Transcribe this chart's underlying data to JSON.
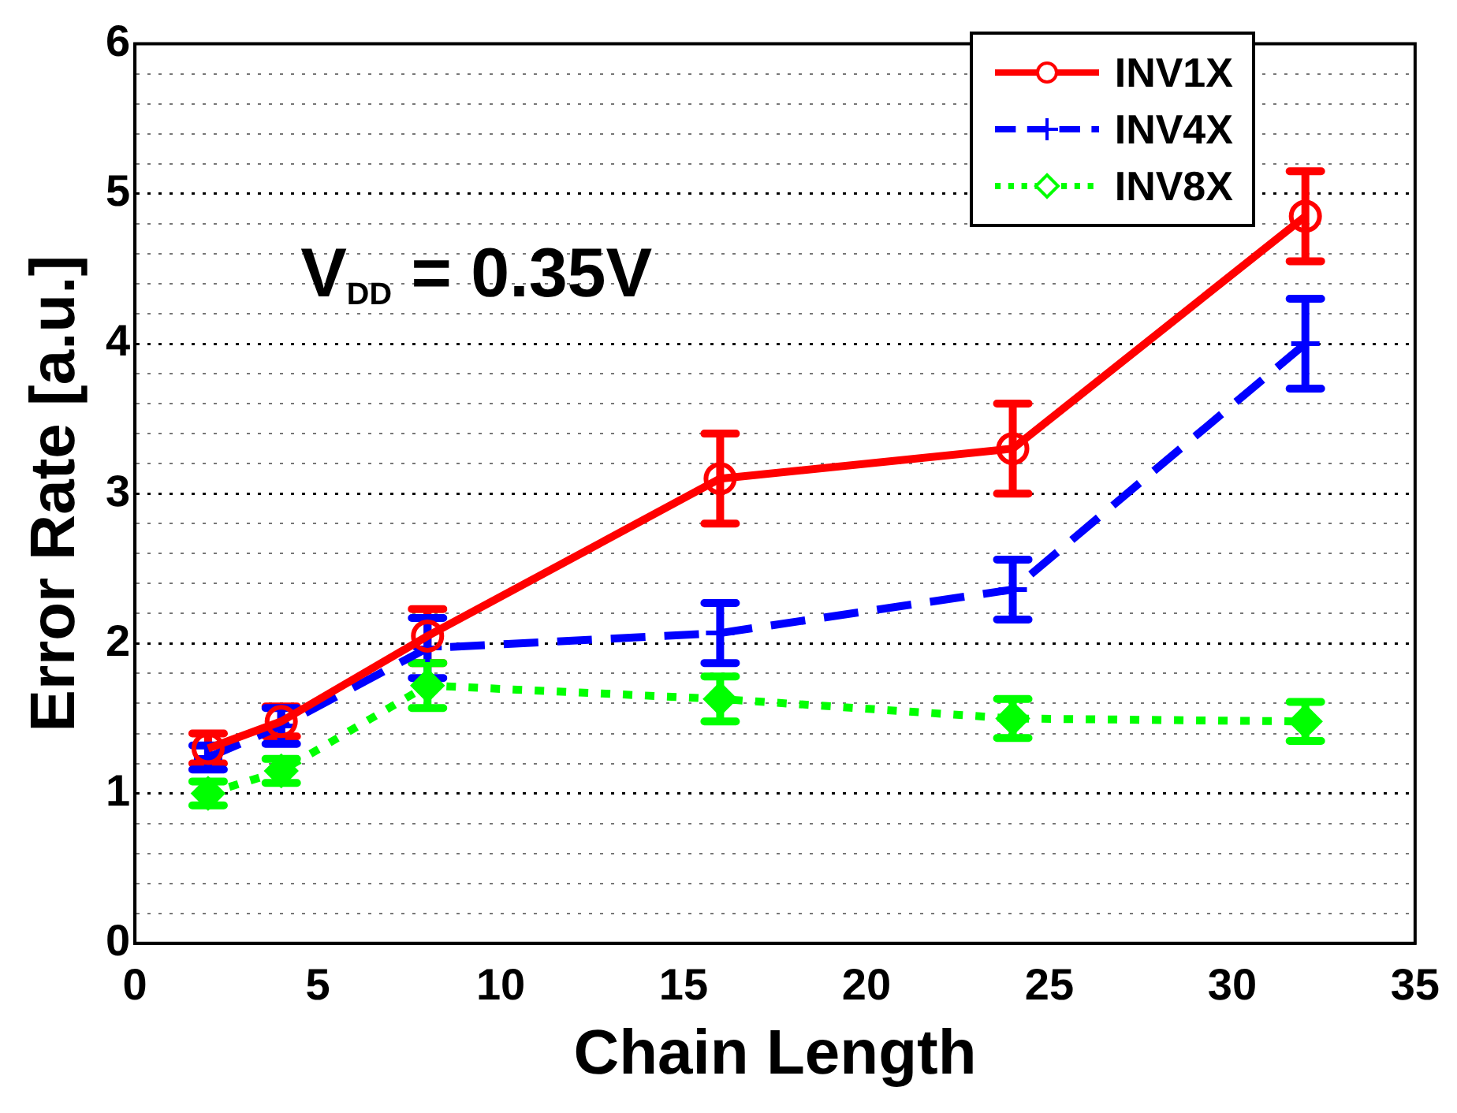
{
  "chart_data": {
    "type": "line",
    "xlabel": "Chain Length",
    "ylabel": "Error Rate [a.u.]",
    "annotations": [
      "V$_{DD}$ = 0.35V"
    ],
    "xlim": [
      0,
      35
    ],
    "xticks": [
      0,
      5,
      10,
      15,
      20,
      25,
      30,
      35
    ],
    "ylim": [
      0,
      6
    ],
    "yticks": [
      0,
      {
        "value": 0.2,
        "label": null
      },
      {
        "value": 0.4,
        "label": null
      },
      {
        "value": 0.6,
        "label": null
      },
      {
        "value": 0.8,
        "label": null
      },
      1,
      {
        "value": 1.2,
        "label": null
      },
      {
        "value": 1.4,
        "label": null
      },
      {
        "value": 1.6,
        "label": null
      },
      {
        "value": 1.8,
        "label": null
      },
      2,
      {
        "value": 2.2,
        "label": null
      },
      {
        "value": 2.4,
        "label": null
      },
      {
        "value": 2.6,
        "label": null
      },
      {
        "value": 2.8,
        "label": null
      },
      3,
      {
        "value": 3.2,
        "label": null
      },
      {
        "value": 3.4,
        "label": null
      },
      {
        "value": 3.6,
        "label": null
      },
      {
        "value": 3.8,
        "label": null
      },
      4,
      {
        "value": 4.2,
        "label": null
      },
      {
        "value": 4.4,
        "label": null
      },
      {
        "value": 4.6,
        "label": null
      },
      {
        "value": 4.8,
        "label": null
      },
      5,
      {
        "value": 5.2,
        "label": null
      },
      {
        "value": 5.4,
        "label": null
      },
      {
        "value": 5.6,
        "label": null
      },
      {
        "value": 5.8,
        "label": null
      },
      6
    ],
    "grid": "y",
    "legend": "top right",
    "x": [
      2,
      4,
      8,
      16,
      24,
      32
    ],
    "series": [
      {
        "name": "INV1X",
        "color": "#ff0000",
        "marker": "circle",
        "line_style": "solid",
        "values": [
          1.3,
          1.48,
          2.05,
          3.1,
          3.3,
          4.85
        ],
        "errors": [
          0.1,
          0.1,
          0.18,
          0.3,
          0.3,
          0.3
        ]
      },
      {
        "name": "INV4X",
        "color": "#0000ff",
        "marker": "cross",
        "line_style": "dashed",
        "values": [
          1.24,
          1.45,
          1.97,
          2.07,
          2.36,
          4.0
        ],
        "errors": [
          0.08,
          0.12,
          0.2,
          0.2,
          0.2,
          0.3
        ]
      },
      {
        "name": "INV8X",
        "color": "#00ff00",
        "marker": "diamond",
        "line_style": "dotted",
        "values": [
          1.0,
          1.15,
          1.72,
          1.63,
          1.5,
          1.48
        ],
        "errors": [
          0.08,
          0.08,
          0.15,
          0.15,
          0.13,
          0.13
        ]
      }
    ]
  }
}
